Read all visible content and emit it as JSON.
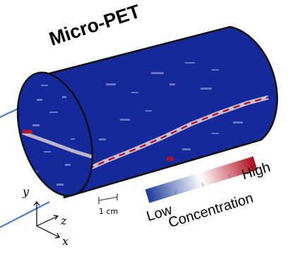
{
  "title": "Micro-PET",
  "scale_bar_label": "1 cm",
  "colorbar": {
    "low_label": "Low",
    "high_label": "High",
    "caption": "Concentration",
    "colors": [
      "#1a3a9a",
      "#ffffff",
      "#b00a1a"
    ]
  },
  "axes": {
    "x": "x",
    "y": "y",
    "z": "z"
  },
  "colors": {
    "cylinder_fill": "#15299a",
    "cylinder_outline": "#111111",
    "vessel": "#b8152a",
    "vessel_glow": "#e8d8d8",
    "beam_lines": "#4a7fd0"
  }
}
